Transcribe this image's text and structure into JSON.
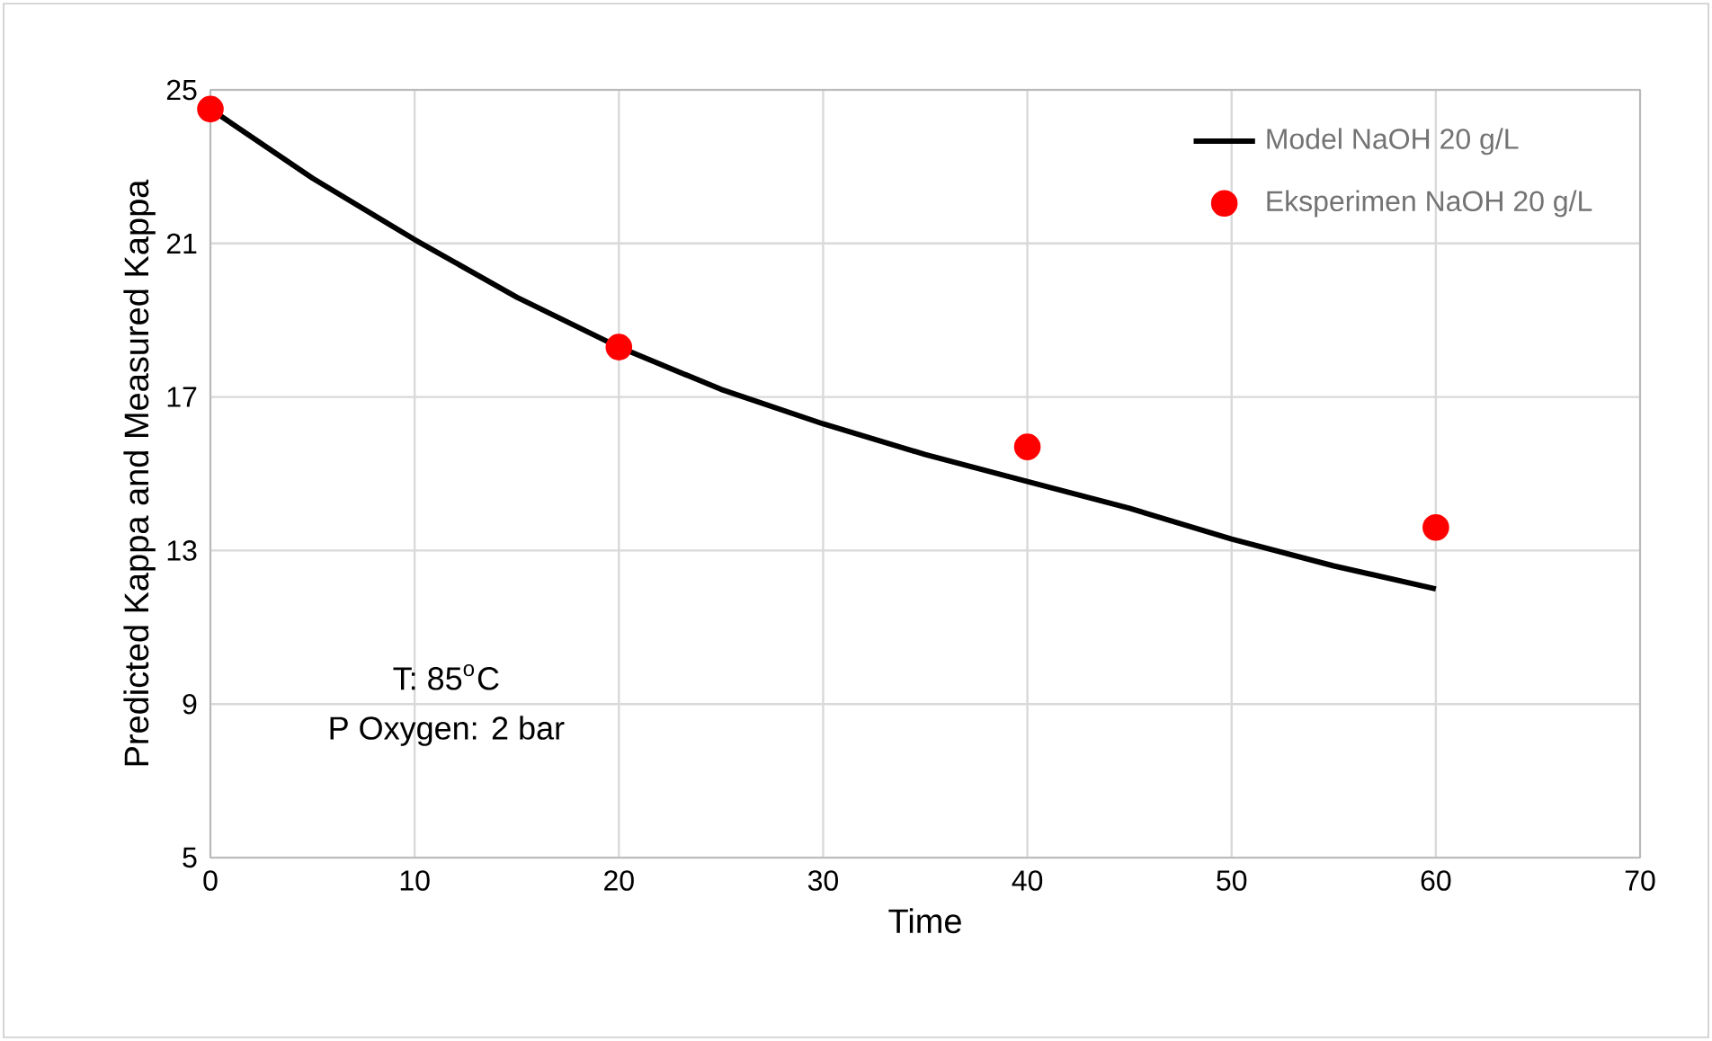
{
  "chart_data": {
    "type": "line",
    "xlabel": "Time",
    "ylabel": "Predicted Kappa and Measured Kappa",
    "xlim": [
      0,
      70
    ],
    "xticks": [
      0,
      10,
      20,
      30,
      40,
      50,
      60,
      70
    ],
    "ylim": [
      5,
      25
    ],
    "yticks": [
      5,
      9,
      13,
      17,
      21,
      25
    ],
    "grid": true,
    "legend": "top right",
    "series": [
      {
        "name": "Model NaOH 20 g/L",
        "color": "#000000",
        "marker": "none",
        "x": [
          0,
          5,
          10,
          15,
          20,
          25,
          30,
          35,
          40,
          45,
          50,
          55,
          60
        ],
        "values": [
          24.5,
          22.7,
          21.1,
          19.6,
          18.3,
          17.2,
          16.3,
          15.5,
          14.8,
          14.1,
          13.3,
          12.6,
          12.0
        ]
      },
      {
        "name": "Eksperimen NaOH 20 g/L",
        "type": "scatter",
        "color": "#ff0000",
        "marker": "circle",
        "x": [
          0,
          20,
          40,
          60
        ],
        "values": [
          24.5,
          18.3,
          15.7,
          13.6
        ]
      }
    ],
    "annotations": [
      "T: 85$^{o}$C",
      "P Oxygen: 2 bar"
    ]
  }
}
